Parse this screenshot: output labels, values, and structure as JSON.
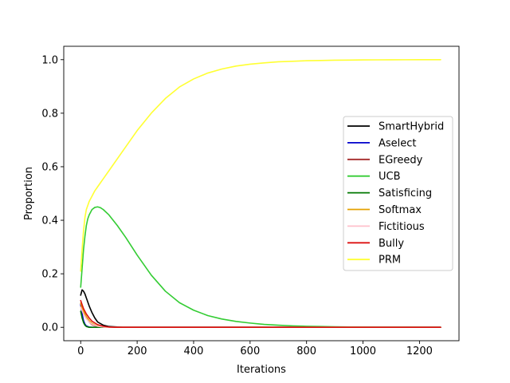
{
  "chart_data": {
    "type": "line",
    "title": "",
    "xlabel": "Iterations",
    "ylabel": "Proportion",
    "xlim": [
      -60,
      1340
    ],
    "ylim": [
      -0.05,
      1.05
    ],
    "xticks": [
      0,
      200,
      400,
      600,
      800,
      1000,
      1200
    ],
    "yticks": [
      0.0,
      0.2,
      0.4,
      0.6,
      0.8,
      1.0
    ],
    "xtick_labels": [
      "0",
      "200",
      "400",
      "600",
      "800",
      "1000",
      "1200"
    ],
    "ytick_labels": [
      "0.0",
      "0.2",
      "0.4",
      "0.6",
      "0.8",
      "1.0"
    ],
    "grid": false,
    "legend_position": "center-right",
    "series": [
      {
        "name": "SmartHybrid",
        "color": "#000000",
        "x": [
          0,
          5,
          10,
          15,
          20,
          30,
          40,
          50,
          60,
          80,
          100,
          150,
          200,
          1275
        ],
        "y": [
          0.12,
          0.14,
          0.135,
          0.125,
          0.11,
          0.08,
          0.055,
          0.035,
          0.02,
          0.008,
          0.003,
          0.0,
          0.0,
          0.0
        ]
      },
      {
        "name": "Aselect",
        "color": "#0000cc",
        "x": [
          0,
          5,
          10,
          15,
          20,
          30,
          40,
          60,
          100,
          1275
        ],
        "y": [
          0.085,
          0.05,
          0.025,
          0.012,
          0.005,
          0.001,
          0.0,
          0.0,
          0.0,
          0.0
        ]
      },
      {
        "name": "EGreedy",
        "color": "#a52a2a",
        "x": [
          0,
          5,
          10,
          20,
          30,
          40,
          60,
          80,
          100,
          1275
        ],
        "y": [
          0.09,
          0.07,
          0.055,
          0.035,
          0.02,
          0.01,
          0.003,
          0.0,
          0.0,
          0.0
        ]
      },
      {
        "name": "UCB",
        "color": "#33cc33",
        "x": [
          0,
          5,
          10,
          15,
          20,
          25,
          30,
          40,
          50,
          60,
          70,
          80,
          100,
          130,
          160,
          200,
          250,
          300,
          350,
          400,
          450,
          500,
          550,
          600,
          650,
          700,
          750,
          800,
          850,
          900,
          950,
          1000,
          1050,
          1100,
          1275
        ],
        "y": [
          0.15,
          0.22,
          0.29,
          0.34,
          0.38,
          0.405,
          0.42,
          0.44,
          0.448,
          0.45,
          0.447,
          0.44,
          0.42,
          0.38,
          0.335,
          0.27,
          0.195,
          0.135,
          0.092,
          0.064,
          0.044,
          0.031,
          0.022,
          0.016,
          0.011,
          0.008,
          0.0055,
          0.004,
          0.003,
          0.002,
          0.0014,
          0.001,
          0.0007,
          0.0005,
          0.0
        ]
      },
      {
        "name": "Satisficing",
        "color": "#007700",
        "x": [
          0,
          5,
          10,
          15,
          20,
          30,
          50,
          1275
        ],
        "y": [
          0.06,
          0.035,
          0.018,
          0.008,
          0.003,
          0.0,
          0.0,
          0.0
        ]
      },
      {
        "name": "Softmax",
        "color": "#e5a100",
        "x": [
          0,
          5,
          10,
          20,
          30,
          40,
          60,
          80,
          100,
          1275
        ],
        "y": [
          0.09,
          0.075,
          0.06,
          0.04,
          0.025,
          0.015,
          0.005,
          0.001,
          0.0,
          0.0
        ]
      },
      {
        "name": "Fictitious",
        "color": "#ffc0cb",
        "x": [
          0,
          5,
          10,
          20,
          30,
          40,
          60,
          80,
          100,
          1275
        ],
        "y": [
          0.075,
          0.062,
          0.05,
          0.032,
          0.02,
          0.012,
          0.004,
          0.001,
          0.0,
          0.0
        ]
      },
      {
        "name": "Bully",
        "color": "#dd1111",
        "x": [
          0,
          5,
          10,
          20,
          30,
          40,
          60,
          80,
          100,
          120,
          1275
        ],
        "y": [
          0.1,
          0.085,
          0.07,
          0.05,
          0.035,
          0.023,
          0.01,
          0.004,
          0.001,
          0.0,
          0.0
        ]
      },
      {
        "name": "PRM",
        "color": "#ffff33",
        "x": [
          0,
          5,
          10,
          15,
          20,
          30,
          40,
          50,
          60,
          80,
          100,
          150,
          200,
          250,
          300,
          350,
          400,
          450,
          500,
          550,
          600,
          650,
          700,
          750,
          800,
          850,
          900,
          950,
          1000,
          1050,
          1100,
          1150,
          1200,
          1275
        ],
        "y": [
          0.21,
          0.29,
          0.36,
          0.41,
          0.44,
          0.47,
          0.49,
          0.51,
          0.525,
          0.555,
          0.585,
          0.66,
          0.735,
          0.8,
          0.855,
          0.898,
          0.928,
          0.95,
          0.965,
          0.976,
          0.983,
          0.988,
          0.992,
          0.994,
          0.996,
          0.997,
          0.998,
          0.9985,
          0.999,
          0.9993,
          0.9995,
          0.9997,
          0.9998,
          0.9999
        ]
      }
    ]
  }
}
